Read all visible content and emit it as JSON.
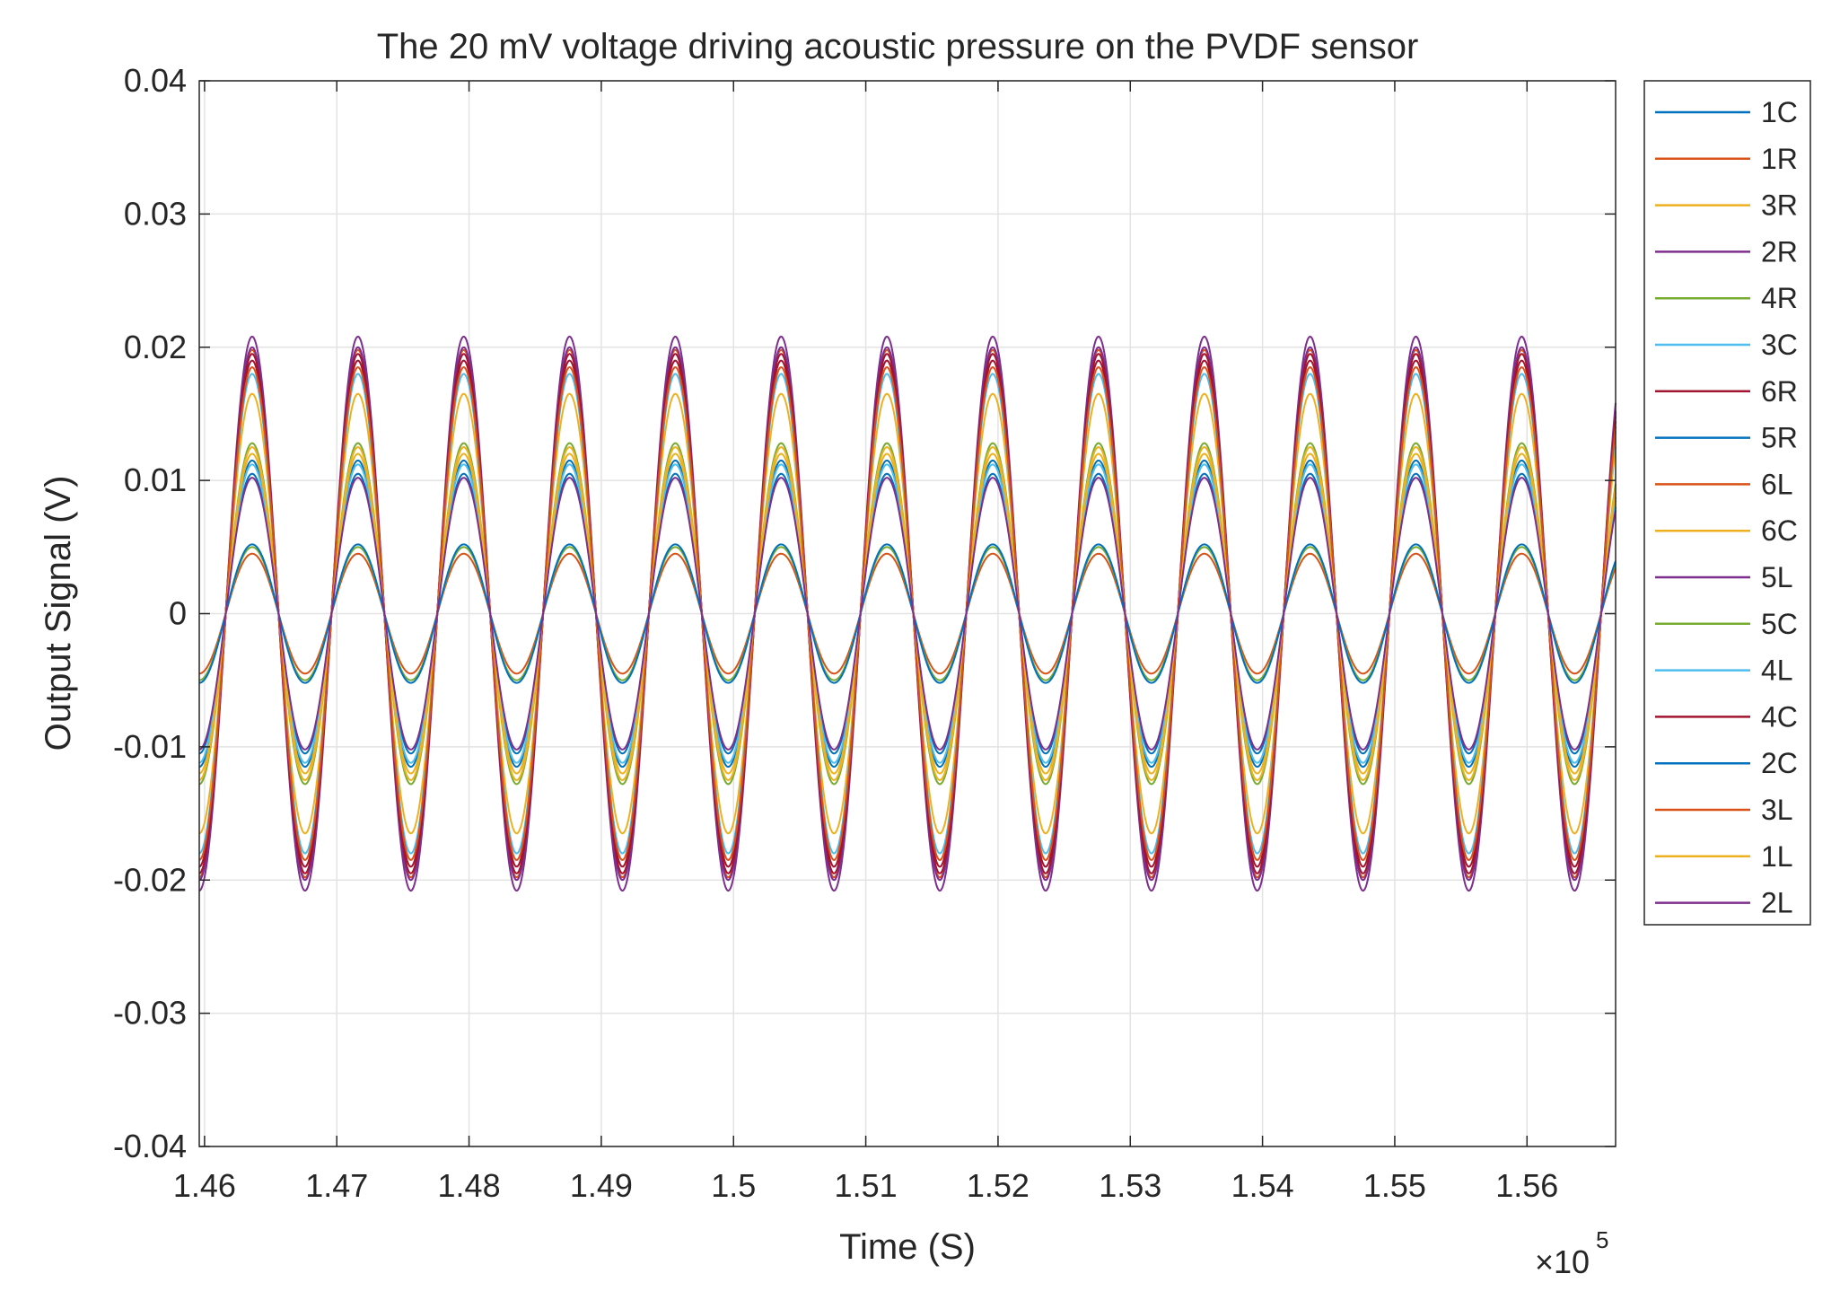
{
  "chart_data": {
    "type": "line",
    "title": "The 20 mV voltage driving acoustic pressure on the PVDF sensor",
    "xlabel": "Time (S)",
    "ylabel": "Output Signal (V)",
    "x_exponent_label": "×10",
    "x_exponent_power": "5",
    "xlim": [
      1.4596,
      1.5667
    ],
    "ylim": [
      -0.04,
      0.04
    ],
    "x_ticks": [
      1.46,
      1.47,
      1.48,
      1.49,
      1.5,
      1.51,
      1.52,
      1.53,
      1.54,
      1.55,
      1.56
    ],
    "x_tick_labels": [
      "1.46",
      "1.47",
      "1.48",
      "1.49",
      "1.5",
      "1.51",
      "1.52",
      "1.53",
      "1.54",
      "1.55",
      "1.56"
    ],
    "y_ticks": [
      -0.04,
      -0.03,
      -0.02,
      -0.01,
      0,
      0.01,
      0.02,
      0.03,
      0.04
    ],
    "y_tick_labels": [
      "-0.04",
      "-0.03",
      "-0.02",
      "-0.01",
      "0",
      "0.01",
      "0.02",
      "0.03",
      "0.04"
    ],
    "grid": true,
    "legend_position": "outside-right",
    "period": 0.008,
    "zero_crossing": 1.4616,
    "series": [
      {
        "name": "1C",
        "color": "#0072BD",
        "amplitude": 0.0115,
        "phase": 0.0
      },
      {
        "name": "1R",
        "color": "#D95319",
        "amplitude": 0.0045,
        "phase": 0.0
      },
      {
        "name": "3R",
        "color": "#EDB120",
        "amplitude": 0.0165,
        "phase": 0.0
      },
      {
        "name": "2R",
        "color": "#7E2F8E",
        "amplitude": 0.0208,
        "phase": 0.0
      },
      {
        "name": "4R",
        "color": "#77AC30",
        "amplitude": 0.0128,
        "phase": 0.0
      },
      {
        "name": "3C",
        "color": "#4DBEEE",
        "amplitude": 0.018,
        "phase": 0.0
      },
      {
        "name": "6R",
        "color": "#A2142F",
        "amplitude": 0.019,
        "phase": 0.0
      },
      {
        "name": "5R",
        "color": "#0072BD",
        "amplitude": 0.0105,
        "phase": 0.0
      },
      {
        "name": "6L",
        "color": "#D95319",
        "amplitude": 0.0198,
        "phase": 0.0
      },
      {
        "name": "6C",
        "color": "#EDB120",
        "amplitude": 0.0125,
        "phase": 0.0
      },
      {
        "name": "5L",
        "color": "#7E2F8E",
        "amplitude": 0.02,
        "phase": 0.0
      },
      {
        "name": "5C",
        "color": "#77AC30",
        "amplitude": 0.005,
        "phase": 0.0
      },
      {
        "name": "4L",
        "color": "#4DBEEE",
        "amplitude": 0.0112,
        "phase": 0.0
      },
      {
        "name": "4C",
        "color": "#A2142F",
        "amplitude": 0.0195,
        "phase": 0.0
      },
      {
        "name": "2C",
        "color": "#0072BD",
        "amplitude": 0.0052,
        "phase": 0.0
      },
      {
        "name": "3L",
        "color": "#D95319",
        "amplitude": 0.0185,
        "phase": 0.0
      },
      {
        "name": "1L",
        "color": "#EDB120",
        "amplitude": 0.012,
        "phase": 0.0
      },
      {
        "name": "2L",
        "color": "#7E2F8E",
        "amplitude": 0.0102,
        "phase": 0.0
      }
    ]
  }
}
